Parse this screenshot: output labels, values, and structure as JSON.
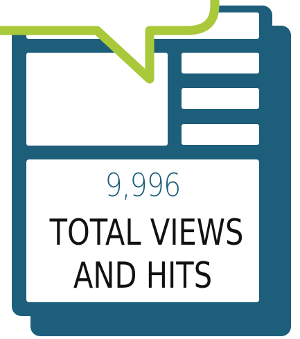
{
  "infographic": {
    "value": "9,996",
    "label_line_1": "TOTAL VIEWS",
    "label_line_2": "AND HITS"
  },
  "colors": {
    "frame": "#1d5e7a",
    "accent": "#a9c83a",
    "panel": "#ffffff",
    "value_text": "#1d5e7a",
    "label_text": "#111111"
  },
  "icons": {
    "document_stack": "document-stack-icon",
    "speech_bubble": "speech-bubble-icon"
  }
}
